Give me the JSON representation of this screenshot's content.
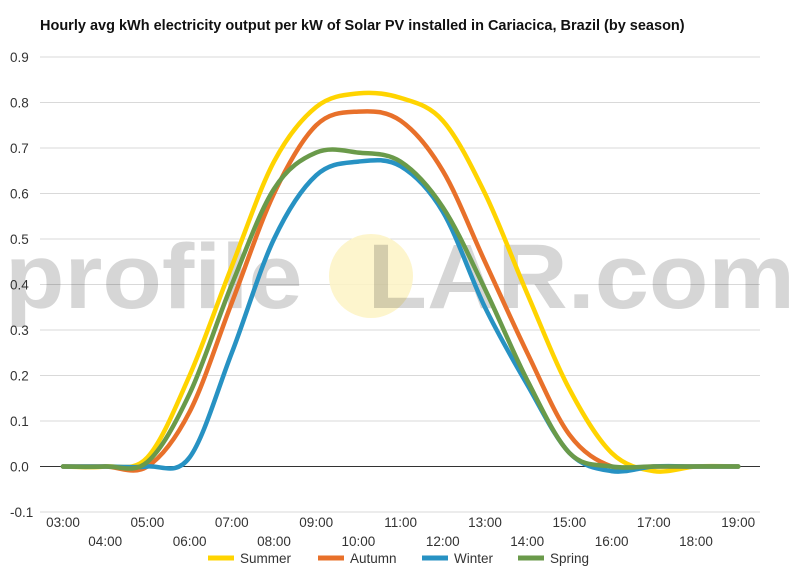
{
  "chart_data": {
    "type": "line",
    "title": "Hourly avg kWh electricity output per kW of Solar PV installed in Cariacica, Brazil (by season)",
    "xlabel": "",
    "ylabel": "",
    "x": [
      "03:00",
      "04:00",
      "05:00",
      "06:00",
      "07:00",
      "08:00",
      "09:00",
      "10:00",
      "11:00",
      "12:00",
      "13:00",
      "14:00",
      "15:00",
      "16:00",
      "17:00",
      "18:00",
      "19:00"
    ],
    "ylim": [
      -0.1,
      0.9
    ],
    "yticks": [
      "0.9",
      "0.8",
      "0.7",
      "0.6",
      "0.5",
      "0.4",
      "0.3",
      "0.2",
      "0.1",
      "0.0",
      "-0.1"
    ],
    "grid": true,
    "legend": "bottom",
    "series": [
      {
        "name": "Summer",
        "color": "#ffd400",
        "values": [
          0,
          0,
          0.02,
          0.2,
          0.44,
          0.67,
          0.79,
          0.82,
          0.81,
          0.76,
          0.6,
          0.38,
          0.17,
          0.03,
          -0.01,
          0,
          0
        ]
      },
      {
        "name": "Autumn",
        "color": "#e8702a",
        "values": [
          0,
          0,
          0,
          0.12,
          0.36,
          0.6,
          0.75,
          0.78,
          0.76,
          0.65,
          0.45,
          0.25,
          0.07,
          0,
          0,
          0,
          0
        ]
      },
      {
        "name": "Winter",
        "color": "#2792c3",
        "values": [
          0,
          0,
          0,
          0.02,
          0.25,
          0.5,
          0.64,
          0.67,
          0.66,
          0.56,
          0.35,
          0.18,
          0.03,
          -0.01,
          0,
          0,
          0
        ]
      },
      {
        "name": "Spring",
        "color": "#6a9a4a",
        "values": [
          0,
          0,
          0.01,
          0.16,
          0.4,
          0.61,
          0.69,
          0.69,
          0.67,
          0.57,
          0.39,
          0.19,
          0.03,
          0,
          0,
          0,
          0
        ]
      }
    ]
  },
  "watermark": {
    "before": "profile",
    "sun": "S",
    "after": "LAR.com"
  }
}
